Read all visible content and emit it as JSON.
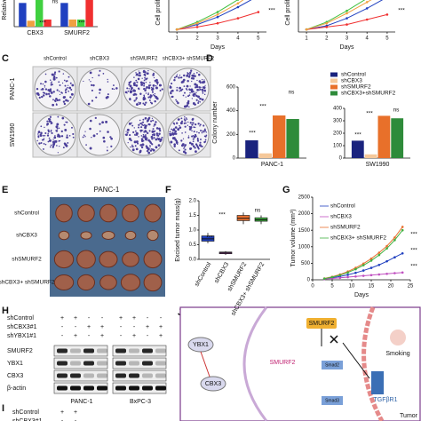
{
  "panel_labels": [
    "C",
    "D",
    "E",
    "F",
    "G",
    "H",
    "I",
    "J"
  ],
  "panel_c": {
    "columns": [
      "shControl",
      "shCBX3",
      "shSMURF2",
      "shCBX3+ shSMURF2"
    ],
    "rows": [
      "PANC-1",
      "SW1990"
    ]
  },
  "panel_e": {
    "title": "PANC-1",
    "rows": [
      "shControl",
      "shCBX3",
      "shSMURF2",
      "shCBX3+ shSMURF2"
    ]
  },
  "panel_h": {
    "conditions": [
      {
        "name": "shControl",
        "signs": [
          "+",
          "+",
          "-",
          "-",
          "+",
          "+",
          "-",
          "-"
        ]
      },
      {
        "name": "shCBX3#1",
        "signs": [
          "-",
          "-",
          "+",
          "+",
          "-",
          "-",
          "+",
          "+"
        ]
      },
      {
        "name": "shYBX1#1",
        "signs": [
          "-",
          "+",
          "-",
          "+",
          "-",
          "+",
          "-",
          "+"
        ]
      }
    ],
    "blots": [
      "SMURF2",
      "YBX1",
      "CBX3",
      "β-actin"
    ],
    "cell_lines": [
      "PANC-1",
      "BxPC-3"
    ]
  },
  "panel_i": {
    "conditions": [
      {
        "name": "shControl",
        "signs": [
          "+",
          "+"
        ]
      },
      {
        "name": "shCBX3#1",
        "signs": [
          "-",
          "-"
        ]
      }
    ]
  },
  "panel_j": {
    "ybx1": "YBX1",
    "cbx3": "CBX3",
    "smurf2_mrna": "SMURF2",
    "smurf2_protein": "SMURF2",
    "smoking": "Smoking",
    "tgfbr1": "TGFβR1",
    "smad2": "Smad2",
    "smad3": "Smad3",
    "tumor": "Tumor"
  },
  "chart_data": [
    {
      "type": "bar",
      "ylabel": "Relative",
      "categories": [
        "CBX3",
        "SMURF2"
      ],
      "ylim": [
        0,
        1.5
      ],
      "series": [
        {
          "color": "#2040c0",
          "values": [
            1.0,
            1.0
          ]
        },
        {
          "color": "#f0a040",
          "values": [
            0.25,
            0.3
          ]
        },
        {
          "color": "#40d040",
          "values": [
            1.45,
            0.3
          ]
        },
        {
          "color": "#f03030",
          "values": [
            0.3,
            1.5
          ]
        }
      ],
      "annotations": [
        "***",
        "ns",
        "***"
      ]
    },
    {
      "type": "line",
      "ylabel": "Cell prolif",
      "xlabel": "Days",
      "xlim": [
        0.6,
        5.4
      ],
      "xticks": [
        1,
        2,
        3,
        4,
        5
      ],
      "ylim": [
        0,
        4
      ],
      "x": [
        1,
        2,
        3,
        4,
        5
      ],
      "series": [
        {
          "color": "#2040c0",
          "values": [
            0.2,
            0.6,
            1.2,
            2.0,
            2.9
          ]
        },
        {
          "color": "#f03030",
          "values": [
            0.2,
            0.4,
            0.7,
            1.1,
            1.6
          ]
        },
        {
          "color": "#40c040",
          "values": [
            0.2,
            0.8,
            1.6,
            2.6,
            3.8
          ]
        },
        {
          "color": "#f0a040",
          "values": [
            0.2,
            0.7,
            1.4,
            2.3,
            3.4
          ]
        }
      ],
      "annotations": [
        "***"
      ]
    },
    {
      "type": "line",
      "ylabel": "Cell prolif",
      "xlabel": "Days",
      "xlim": [
        0.6,
        5.4
      ],
      "xticks": [
        1,
        2,
        3,
        4,
        5
      ],
      "ylim": [
        0,
        4
      ],
      "x": [
        1,
        2,
        3,
        4,
        5
      ],
      "series": [
        {
          "color": "#2040c0",
          "values": [
            0.2,
            0.5,
            1.1,
            1.9,
            2.8
          ]
        },
        {
          "color": "#f03030",
          "values": [
            0.2,
            0.4,
            0.6,
            1.0,
            1.4
          ]
        },
        {
          "color": "#40c040",
          "values": [
            0.2,
            0.8,
            1.7,
            2.7,
            3.7
          ]
        },
        {
          "color": "#f0a040",
          "values": [
            0.2,
            0.7,
            1.5,
            2.4,
            3.3
          ]
        }
      ],
      "annotations": [
        "***"
      ]
    },
    {
      "type": "bar",
      "ylabel": "Colony number",
      "categories": [
        "PANC-1"
      ],
      "ylim": [
        0,
        600
      ],
      "yticks": [
        0,
        200,
        400,
        600
      ],
      "legend": true,
      "series": [
        {
          "name": "shControl",
          "color": "#1a237e",
          "values": [
            150
          ]
        },
        {
          "name": "shCBX3",
          "color": "#f5c89a",
          "values": [
            40
          ]
        },
        {
          "name": "shSMURF2",
          "color": "#e8702a",
          "values": [
            360
          ]
        },
        {
          "name": "shCBX3+shSMURF2",
          "color": "#2e8b3a",
          "values": [
            330
          ]
        }
      ],
      "annotations": [
        "***",
        "***",
        "ns"
      ]
    },
    {
      "type": "bar",
      "categories": [
        "SW1990"
      ],
      "ylim": [
        0,
        400
      ],
      "yticks": [
        0,
        100,
        200,
        300,
        400
      ],
      "series": [
        {
          "color": "#1a237e",
          "values": [
            140
          ]
        },
        {
          "color": "#f5c89a",
          "values": [
            30
          ]
        },
        {
          "color": "#e8702a",
          "values": [
            340
          ]
        },
        {
          "color": "#2e8b3a",
          "values": [
            320
          ]
        }
      ],
      "annotations": [
        "***",
        "***",
        "ns"
      ]
    },
    {
      "type": "box",
      "ylabel": "Excised tumor mass(g)",
      "categories": [
        "shControl",
        "shCBX3",
        "shSMURF2",
        "shCBX3+ shSMURF2"
      ],
      "colors": [
        "#1f3fbf",
        "#c050c0",
        "#e87030",
        "#40b040"
      ],
      "ylim": [
        0,
        2.0
      ],
      "yticks": [
        {
          "value": 0,
          "label": "0.0"
        },
        {
          "value": 0.5,
          "label": "0.5"
        },
        {
          "value": 1,
          "label": "1.0"
        },
        {
          "value": 1.5,
          "label": "1.5"
        },
        {
          "value": 2,
          "label": "2.0"
        }
      ],
      "stats": [
        [
          0.55,
          0.62,
          0.7,
          0.8,
          0.9
        ],
        [
          0.15,
          0.19,
          0.22,
          0.25,
          0.28
        ],
        [
          1.2,
          1.32,
          1.4,
          1.5,
          1.6
        ],
        [
          1.2,
          1.3,
          1.35,
          1.42,
          1.5
        ]
      ],
      "annotations": [
        "***",
        "***",
        "ns"
      ]
    },
    {
      "type": "line",
      "ylabel": "Tumor volume (mm³)",
      "xlabel": "Days",
      "xlim": [
        0,
        25
      ],
      "xticks": [
        0,
        5,
        10,
        15,
        20,
        25
      ],
      "ylim": [
        0,
        2500
      ],
      "yticks": [
        0,
        500,
        1000,
        1500,
        2000,
        2500
      ],
      "legend": true,
      "x": [
        3,
        5,
        7,
        9,
        11,
        13,
        15,
        17,
        19,
        21,
        23
      ],
      "series": [
        {
          "name": "shControl",
          "color": "#1f3fbf",
          "values": [
            30,
            60,
            100,
            150,
            210,
            280,
            360,
            450,
            560,
            680,
            800
          ]
        },
        {
          "name": "shCBX3",
          "color": "#c050c0",
          "values": [
            25,
            40,
            60,
            80,
            100,
            120,
            140,
            160,
            180,
            200,
            220
          ]
        },
        {
          "name": "shSMURF2",
          "color": "#e87030",
          "values": [
            40,
            90,
            160,
            250,
            360,
            490,
            640,
            820,
            1020,
            1280,
            1600
          ]
        },
        {
          "name": "shCBX3+ shSMURF2",
          "color": "#40b040",
          "values": [
            35,
            80,
            140,
            220,
            320,
            440,
            580,
            750,
            950,
            1200,
            1500
          ]
        }
      ],
      "annotations": [
        "***",
        "***",
        "***"
      ]
    }
  ]
}
